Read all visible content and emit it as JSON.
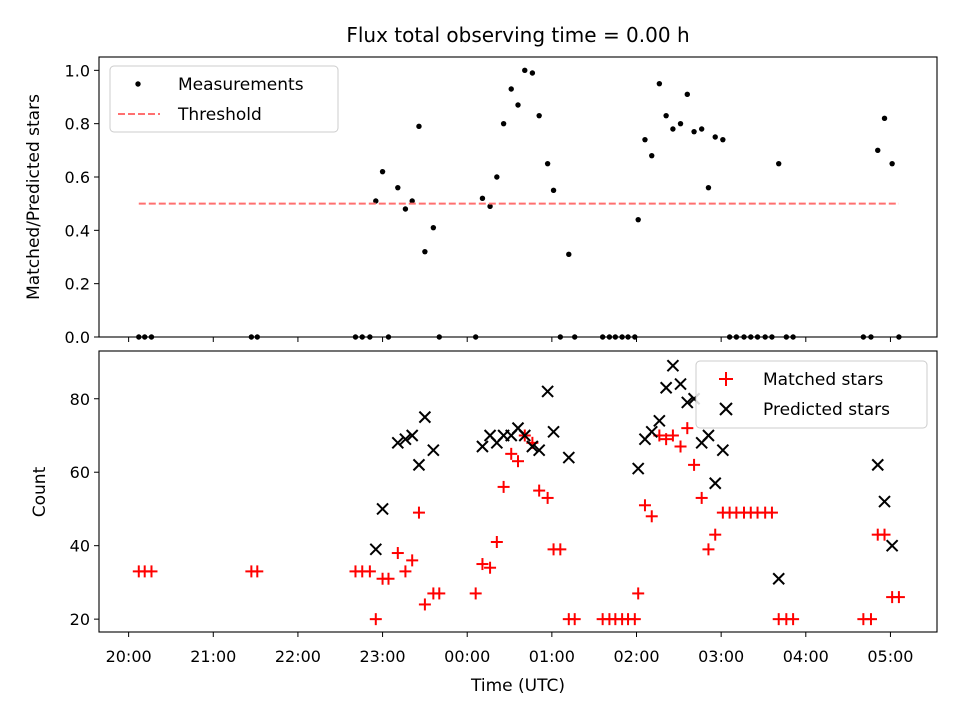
{
  "title": "Flux total observing time = 0.00 h",
  "xlabel": "Time (UTC)",
  "x_tick_labels": [
    "20:00",
    "21:00",
    "22:00",
    "23:00",
    "00:00",
    "01:00",
    "02:00",
    "03:00",
    "04:00",
    "05:00"
  ],
  "colors": {
    "measure": "#000000",
    "threshold": "#ff7070",
    "matched": "#ff0000",
    "predicted": "#000000"
  },
  "chart_data": [
    {
      "type": "scatter",
      "ylabel": "Matched/Predicted stars",
      "x_unit": "hours since 20:00 UTC",
      "xlim": [
        -0.35,
        9.55
      ],
      "ylim": [
        0,
        1.05
      ],
      "y_ticks": [
        0.0,
        0.2,
        0.4,
        0.6,
        0.8,
        1.0
      ],
      "y_tick_labels": [
        "0.0",
        "0.2",
        "0.4",
        "0.6",
        "0.8",
        "1.0"
      ],
      "legend": {
        "position": "upper-left",
        "entries": [
          "Measurements",
          "Threshold"
        ]
      },
      "series": [
        {
          "name": "Measurements",
          "marker": "dot",
          "points": [
            [
              0.12,
              0
            ],
            [
              0.19,
              0
            ],
            [
              0.27,
              0
            ],
            [
              1.45,
              0
            ],
            [
              1.52,
              0
            ],
            [
              2.68,
              0
            ],
            [
              2.76,
              0
            ],
            [
              2.85,
              0
            ],
            [
              2.92,
              0.51
            ],
            [
              3.0,
              0.62
            ],
            [
              3.07,
              0
            ],
            [
              3.18,
              0.56
            ],
            [
              3.27,
              0.48
            ],
            [
              3.35,
              0.51
            ],
            [
              3.43,
              0.79
            ],
            [
              3.5,
              0.32
            ],
            [
              3.6,
              0.41
            ],
            [
              3.67,
              0
            ],
            [
              4.1,
              0
            ],
            [
              4.18,
              0.52
            ],
            [
              4.27,
              0.49
            ],
            [
              4.35,
              0.6
            ],
            [
              4.43,
              0.8
            ],
            [
              4.52,
              0.93
            ],
            [
              4.6,
              0.87
            ],
            [
              4.68,
              1.0
            ],
            [
              4.77,
              0.99
            ],
            [
              4.85,
              0.83
            ],
            [
              4.95,
              0.65
            ],
            [
              5.02,
              0.55
            ],
            [
              5.1,
              0
            ],
            [
              5.2,
              0.31
            ],
            [
              5.27,
              0
            ],
            [
              5.6,
              0
            ],
            [
              5.68,
              0
            ],
            [
              5.75,
              0
            ],
            [
              5.83,
              0
            ],
            [
              5.9,
              0
            ],
            [
              5.98,
              0
            ],
            [
              6.02,
              0.44
            ],
            [
              6.1,
              0.74
            ],
            [
              6.18,
              0.68
            ],
            [
              6.27,
              0.95
            ],
            [
              6.35,
              0.83
            ],
            [
              6.43,
              0.78
            ],
            [
              6.52,
              0.8
            ],
            [
              6.6,
              0.91
            ],
            [
              6.68,
              0.77
            ],
            [
              6.77,
              0.78
            ],
            [
              6.85,
              0.56
            ],
            [
              6.93,
              0.75
            ],
            [
              7.02,
              0.74
            ],
            [
              7.1,
              0
            ],
            [
              7.18,
              0
            ],
            [
              7.27,
              0
            ],
            [
              7.35,
              0
            ],
            [
              7.43,
              0
            ],
            [
              7.52,
              0
            ],
            [
              7.6,
              0
            ],
            [
              7.68,
              0.65
            ],
            [
              7.77,
              0
            ],
            [
              7.85,
              0
            ],
            [
              8.68,
              0
            ],
            [
              8.77,
              0
            ],
            [
              8.85,
              0.7
            ],
            [
              8.93,
              0.82
            ],
            [
              9.02,
              0.65
            ],
            [
              9.1,
              0
            ]
          ]
        },
        {
          "name": "Threshold",
          "marker": "dashed-line",
          "x": [
            0.12,
            9.1
          ],
          "y": [
            0.5,
            0.5
          ]
        }
      ]
    },
    {
      "type": "scatter",
      "ylabel": "Count",
      "x_unit": "hours since 20:00 UTC",
      "xlim": [
        -0.35,
        9.55
      ],
      "ylim": [
        16.5,
        93
      ],
      "y_ticks": [
        20,
        40,
        60,
        80
      ],
      "y_tick_labels": [
        "20",
        "40",
        "60",
        "80"
      ],
      "legend": {
        "position": "upper-right",
        "entries": [
          "Matched stars",
          "Predicted stars"
        ]
      },
      "series": [
        {
          "name": "Matched stars",
          "marker": "plus",
          "points": [
            [
              0.12,
              33
            ],
            [
              0.19,
              33
            ],
            [
              0.27,
              33
            ],
            [
              1.45,
              33
            ],
            [
              1.52,
              33
            ],
            [
              2.68,
              33
            ],
            [
              2.76,
              33
            ],
            [
              2.85,
              33
            ],
            [
              2.92,
              20
            ],
            [
              3.0,
              31
            ],
            [
              3.07,
              31
            ],
            [
              3.18,
              38
            ],
            [
              3.27,
              33
            ],
            [
              3.35,
              36
            ],
            [
              3.43,
              49
            ],
            [
              3.5,
              24
            ],
            [
              3.6,
              27
            ],
            [
              3.67,
              27
            ],
            [
              4.1,
              27
            ],
            [
              4.18,
              35
            ],
            [
              4.27,
              34
            ],
            [
              4.35,
              41
            ],
            [
              4.43,
              56
            ],
            [
              4.52,
              65
            ],
            [
              4.6,
              63
            ],
            [
              4.68,
              70
            ],
            [
              4.77,
              68
            ],
            [
              4.85,
              55
            ],
            [
              4.95,
              53
            ],
            [
              5.02,
              39
            ],
            [
              5.1,
              39
            ],
            [
              5.2,
              20
            ],
            [
              5.27,
              20
            ],
            [
              5.6,
              20
            ],
            [
              5.68,
              20
            ],
            [
              5.75,
              20
            ],
            [
              5.83,
              20
            ],
            [
              5.9,
              20
            ],
            [
              5.98,
              20
            ],
            [
              6.02,
              27
            ],
            [
              6.1,
              51
            ],
            [
              6.18,
              48
            ],
            [
              6.27,
              70
            ],
            [
              6.35,
              69
            ],
            [
              6.43,
              70
            ],
            [
              6.52,
              67
            ],
            [
              6.6,
              72
            ],
            [
              6.68,
              62
            ],
            [
              6.77,
              53
            ],
            [
              6.85,
              39
            ],
            [
              6.93,
              43
            ],
            [
              7.02,
              49
            ],
            [
              7.1,
              49
            ],
            [
              7.18,
              49
            ],
            [
              7.27,
              49
            ],
            [
              7.35,
              49
            ],
            [
              7.43,
              49
            ],
            [
              7.52,
              49
            ],
            [
              7.6,
              49
            ],
            [
              7.68,
              20
            ],
            [
              7.77,
              20
            ],
            [
              7.85,
              20
            ],
            [
              8.68,
              20
            ],
            [
              8.77,
              20
            ],
            [
              8.85,
              43
            ],
            [
              8.93,
              43
            ],
            [
              9.02,
              26
            ],
            [
              9.1,
              26
            ]
          ]
        },
        {
          "name": "Predicted stars",
          "marker": "x",
          "points": [
            [
              2.92,
              39
            ],
            [
              3.0,
              50
            ],
            [
              3.18,
              68
            ],
            [
              3.27,
              69
            ],
            [
              3.35,
              70
            ],
            [
              3.43,
              62
            ],
            [
              3.5,
              75
            ],
            [
              3.6,
              66
            ],
            [
              4.18,
              67
            ],
            [
              4.27,
              70
            ],
            [
              4.35,
              68
            ],
            [
              4.43,
              70
            ],
            [
              4.52,
              70
            ],
            [
              4.6,
              72
            ],
            [
              4.68,
              70
            ],
            [
              4.77,
              67
            ],
            [
              4.85,
              66
            ],
            [
              4.95,
              82
            ],
            [
              5.02,
              71
            ],
            [
              5.2,
              64
            ],
            [
              6.02,
              61
            ],
            [
              6.1,
              69
            ],
            [
              6.18,
              71
            ],
            [
              6.27,
              74
            ],
            [
              6.35,
              83
            ],
            [
              6.43,
              89
            ],
            [
              6.52,
              84
            ],
            [
              6.6,
              79
            ],
            [
              6.68,
              80
            ],
            [
              6.77,
              68
            ],
            [
              6.85,
              70
            ],
            [
              6.93,
              57
            ],
            [
              7.02,
              66
            ],
            [
              7.68,
              31
            ],
            [
              8.85,
              62
            ],
            [
              8.93,
              52
            ],
            [
              9.02,
              40
            ]
          ]
        }
      ]
    }
  ]
}
